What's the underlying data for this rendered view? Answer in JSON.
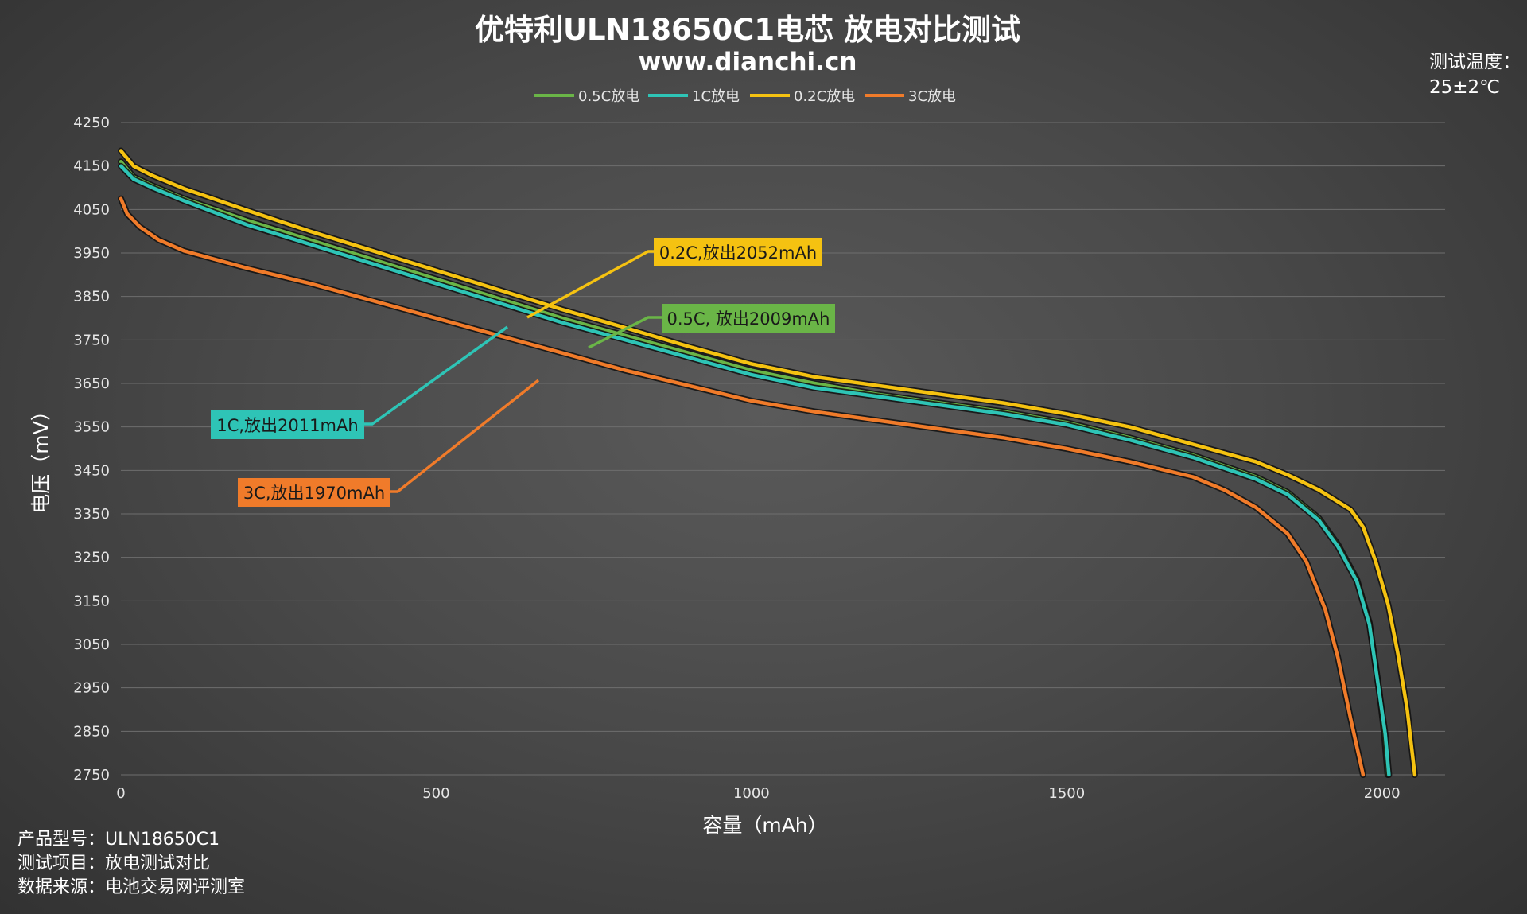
{
  "chart_data": {
    "type": "line",
    "title": "优特利ULN18650C1电芯 放电对比测试",
    "subtitle": "www.dianchi.cn",
    "xlabel": "容量（mAh）",
    "ylabel": "电压（mV）",
    "xlim": [
      0,
      2100
    ],
    "ylim": [
      2750,
      4250
    ],
    "x_ticks": [
      0,
      500,
      1000,
      1500,
      2000
    ],
    "y_ticks": [
      2750,
      2850,
      2950,
      3050,
      3150,
      3250,
      3350,
      3450,
      3550,
      3650,
      3750,
      3850,
      3950,
      4050,
      4150,
      4250
    ],
    "grid": true,
    "legend_position": "top-center",
    "series": [
      {
        "name": "0.5C放电",
        "color": "#6ab547",
        "points": [
          [
            0,
            4160
          ],
          [
            20,
            4125
          ],
          [
            50,
            4105
          ],
          [
            100,
            4075
          ],
          [
            200,
            4025
          ],
          [
            300,
            3980
          ],
          [
            400,
            3935
          ],
          [
            500,
            3890
          ],
          [
            600,
            3845
          ],
          [
            700,
            3800
          ],
          [
            800,
            3760
          ],
          [
            900,
            3720
          ],
          [
            1000,
            3680
          ],
          [
            1100,
            3650
          ],
          [
            1200,
            3625
          ],
          [
            1300,
            3605
          ],
          [
            1400,
            3585
          ],
          [
            1500,
            3560
          ],
          [
            1600,
            3525
          ],
          [
            1700,
            3485
          ],
          [
            1800,
            3435
          ],
          [
            1850,
            3400
          ],
          [
            1900,
            3340
          ],
          [
            1930,
            3280
          ],
          [
            1960,
            3200
          ],
          [
            1980,
            3100
          ],
          [
            1995,
            2950
          ],
          [
            2003,
            2850
          ],
          [
            2009,
            2750
          ]
        ]
      },
      {
        "name": "1C放电",
        "color": "#2ec4b6",
        "points": [
          [
            0,
            4150
          ],
          [
            20,
            4120
          ],
          [
            50,
            4100
          ],
          [
            100,
            4070
          ],
          [
            200,
            4015
          ],
          [
            300,
            3970
          ],
          [
            400,
            3925
          ],
          [
            500,
            3880
          ],
          [
            600,
            3835
          ],
          [
            700,
            3790
          ],
          [
            800,
            3750
          ],
          [
            900,
            3710
          ],
          [
            1000,
            3670
          ],
          [
            1100,
            3640
          ],
          [
            1200,
            3620
          ],
          [
            1300,
            3600
          ],
          [
            1400,
            3580
          ],
          [
            1500,
            3555
          ],
          [
            1600,
            3520
          ],
          [
            1700,
            3480
          ],
          [
            1800,
            3430
          ],
          [
            1850,
            3395
          ],
          [
            1900,
            3335
          ],
          [
            1930,
            3275
          ],
          [
            1960,
            3195
          ],
          [
            1980,
            3095
          ],
          [
            1995,
            2945
          ],
          [
            2005,
            2845
          ],
          [
            2011,
            2750
          ]
        ]
      },
      {
        "name": "0.2C放电",
        "color": "#f5c211",
        "points": [
          [
            0,
            4185
          ],
          [
            20,
            4150
          ],
          [
            50,
            4128
          ],
          [
            100,
            4098
          ],
          [
            200,
            4048
          ],
          [
            300,
            4000
          ],
          [
            400,
            3955
          ],
          [
            500,
            3910
          ],
          [
            600,
            3865
          ],
          [
            700,
            3820
          ],
          [
            800,
            3778
          ],
          [
            900,
            3735
          ],
          [
            1000,
            3695
          ],
          [
            1100,
            3665
          ],
          [
            1200,
            3645
          ],
          [
            1300,
            3625
          ],
          [
            1400,
            3605
          ],
          [
            1500,
            3580
          ],
          [
            1600,
            3550
          ],
          [
            1700,
            3510
          ],
          [
            1800,
            3470
          ],
          [
            1850,
            3440
          ],
          [
            1900,
            3405
          ],
          [
            1950,
            3360
          ],
          [
            1970,
            3320
          ],
          [
            1990,
            3240
          ],
          [
            2010,
            3140
          ],
          [
            2025,
            3030
          ],
          [
            2040,
            2900
          ],
          [
            2052,
            2750
          ]
        ]
      },
      {
        "name": "3C放电",
        "color": "#f07b2a",
        "points": [
          [
            0,
            4075
          ],
          [
            10,
            4040
          ],
          [
            30,
            4010
          ],
          [
            60,
            3980
          ],
          [
            100,
            3955
          ],
          [
            150,
            3935
          ],
          [
            200,
            3915
          ],
          [
            300,
            3880
          ],
          [
            400,
            3840
          ],
          [
            500,
            3800
          ],
          [
            600,
            3760
          ],
          [
            700,
            3720
          ],
          [
            800,
            3680
          ],
          [
            900,
            3645
          ],
          [
            1000,
            3610
          ],
          [
            1100,
            3585
          ],
          [
            1200,
            3565
          ],
          [
            1300,
            3545
          ],
          [
            1400,
            3525
          ],
          [
            1500,
            3500
          ],
          [
            1600,
            3470
          ],
          [
            1700,
            3435
          ],
          [
            1750,
            3405
          ],
          [
            1800,
            3365
          ],
          [
            1850,
            3305
          ],
          [
            1880,
            3240
          ],
          [
            1910,
            3130
          ],
          [
            1930,
            3020
          ],
          [
            1950,
            2880
          ],
          [
            1970,
            2750
          ]
        ]
      }
    ],
    "annotations": [
      {
        "text": "0.2C,放出2052mAh",
        "series": "0.2C放电"
      },
      {
        "text": "0.5C, 放出2009mAh",
        "series": "0.5C放电"
      },
      {
        "text": "1C,放出2011mAh",
        "series": "1C放电"
      },
      {
        "text": "3C,放出1970mAh",
        "series": "3C放电"
      }
    ]
  },
  "temperature": {
    "label": "测试温度：",
    "value": "25±2℃"
  },
  "info": [
    "产品型号：ULN18650C1",
    "测试项目：放电测试对比",
    "数据来源：电池交易网评测室"
  ]
}
